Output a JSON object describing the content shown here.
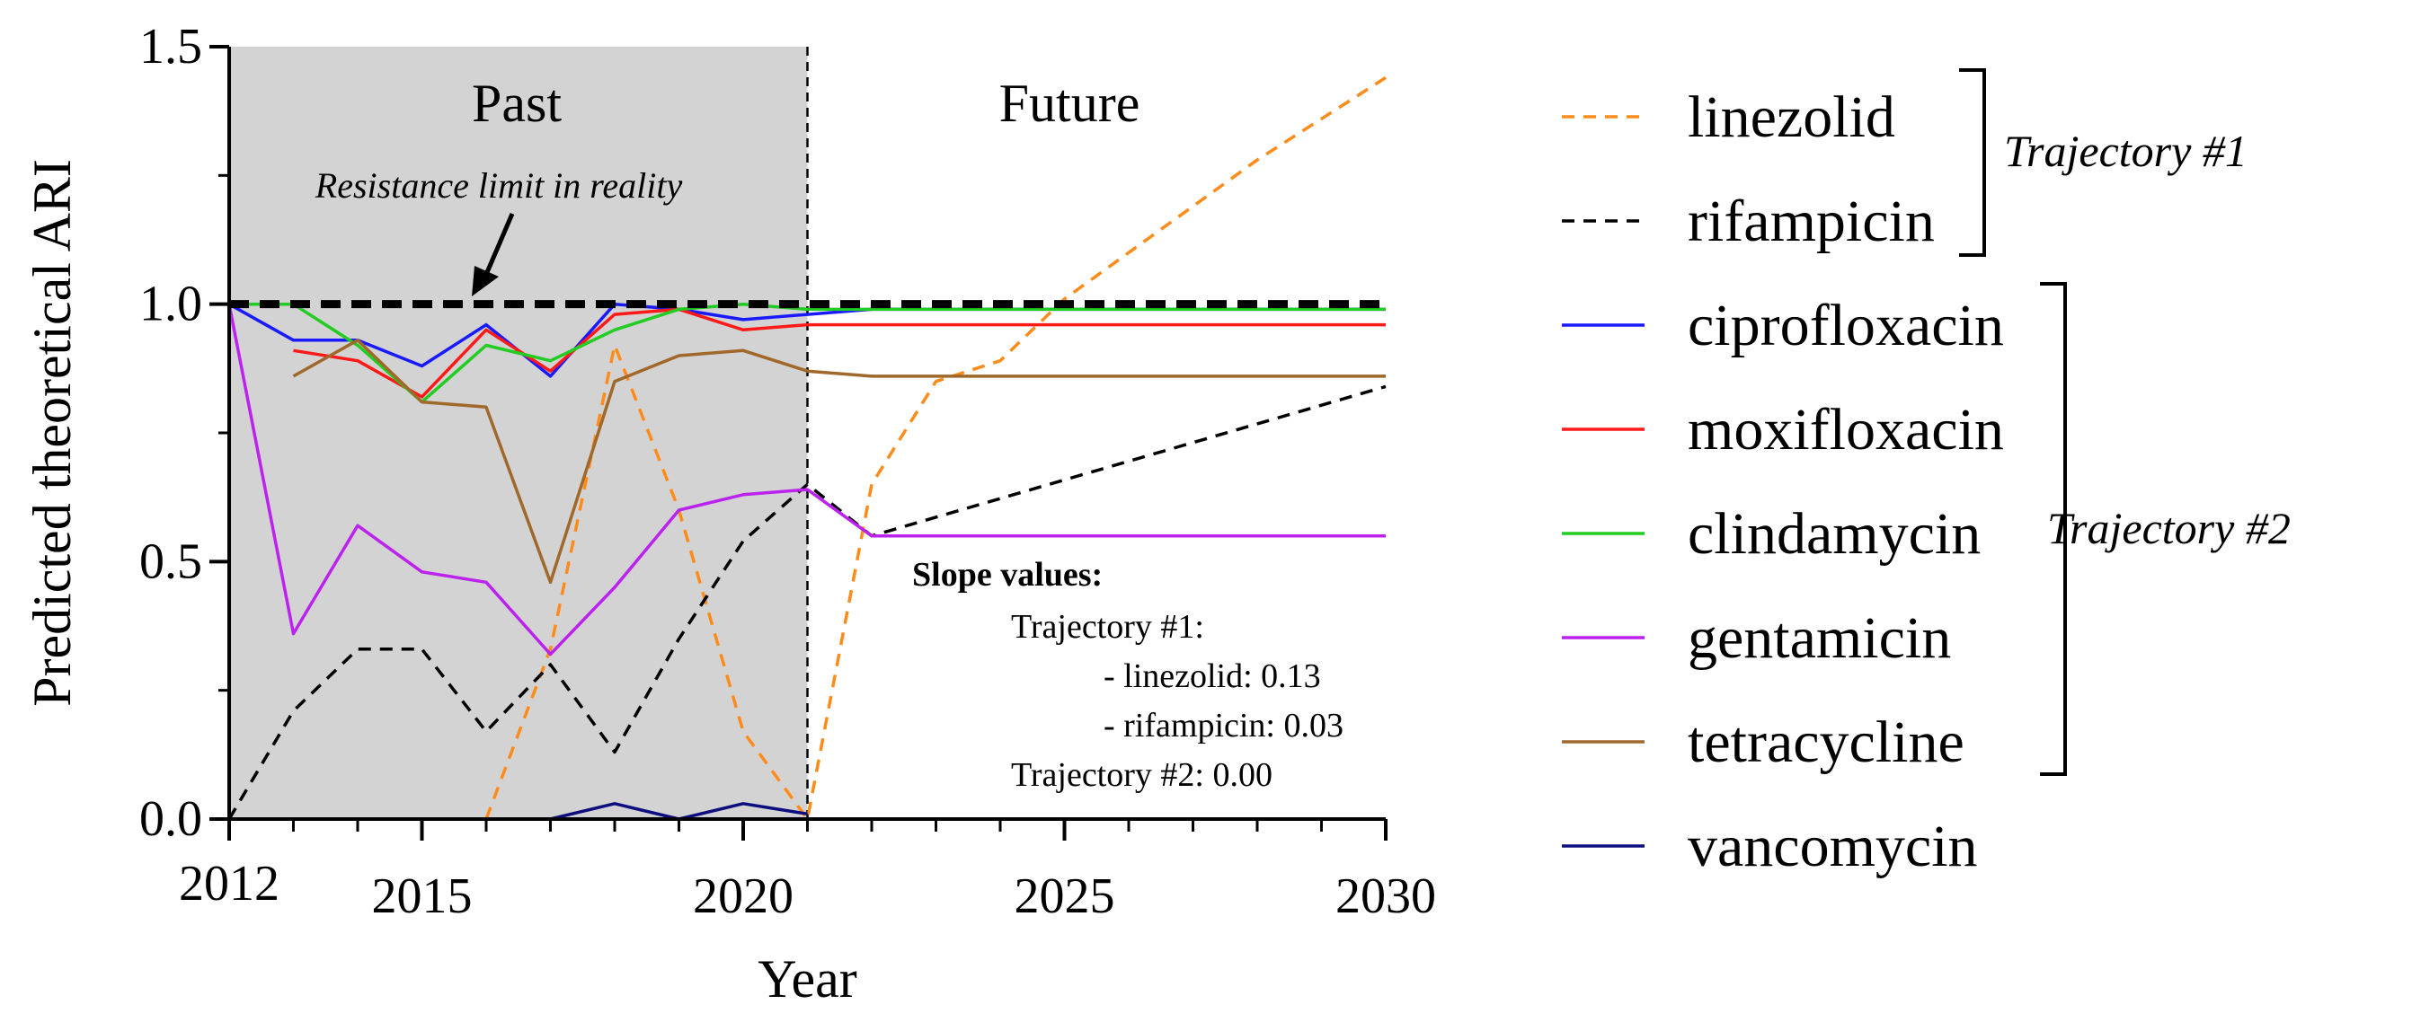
{
  "chart_data": {
    "type": "line",
    "title": "",
    "xlabel": "Year",
    "ylabel": "Predicted theoretical ARI",
    "xlim": [
      2012,
      2030
    ],
    "ylim": [
      0.0,
      1.5
    ],
    "x_tick_labels": [
      "2012",
      "2015",
      "2020",
      "2025",
      "2030"
    ],
    "x_ticks": [
      2012,
      2015,
      2020,
      2025,
      2030
    ],
    "y_tick_labels": [
      "0.0",
      "0.5",
      "1.0",
      "1.5"
    ],
    "y_ticks": [
      0.0,
      0.5,
      1.0,
      1.5
    ],
    "shaded_region": {
      "from": 2012,
      "to": 2021,
      "label": "Past",
      "color": "#d3d3d3"
    },
    "future_label": "Future",
    "divider_x": 2021,
    "resistance_limit": {
      "y": 1.0,
      "label": "Resistance limit in reality",
      "color": "#000000"
    },
    "series": [
      {
        "name": "linezolid",
        "color": "#ff8c1a",
        "dash": "dash",
        "x": [
          2016,
          2017,
          2018,
          2019,
          2020,
          2021,
          2022,
          2023,
          2024,
          2025,
          2026,
          2027,
          2028,
          2029,
          2030
        ],
        "values": [
          0.0,
          0.33,
          0.92,
          0.6,
          0.17,
          0.0,
          0.65,
          0.85,
          0.89,
          1.01,
          1.1,
          1.19,
          1.28,
          1.36,
          1.44
        ]
      },
      {
        "name": "rifampicin",
        "color": "#000000",
        "dash": "dash",
        "x": [
          2012,
          2013,
          2014,
          2015,
          2016,
          2017,
          2018,
          2019,
          2020,
          2021,
          2022,
          2030
        ],
        "values": [
          0.0,
          0.21,
          0.33,
          0.33,
          0.17,
          0.3,
          0.13,
          0.35,
          0.54,
          0.65,
          0.55,
          0.84
        ]
      },
      {
        "name": "ciprofloxacin",
        "color": "#1a1aff",
        "dash": "solid",
        "x": [
          2012,
          2013,
          2014,
          2015,
          2016,
          2017,
          2018,
          2019,
          2020,
          2021,
          2022,
          2030
        ],
        "values": [
          1.0,
          0.93,
          0.93,
          0.88,
          0.96,
          0.86,
          1.0,
          0.99,
          0.97,
          0.98,
          0.99,
          0.99
        ]
      },
      {
        "name": "moxifloxacin",
        "color": "#ff1a1a",
        "dash": "solid",
        "x": [
          2013,
          2014,
          2015,
          2016,
          2017,
          2018,
          2019,
          2020,
          2021,
          2022,
          2030
        ],
        "values": [
          0.91,
          0.89,
          0.82,
          0.95,
          0.87,
          0.98,
          0.99,
          0.95,
          0.96,
          0.96,
          0.96
        ]
      },
      {
        "name": "clindamycin",
        "color": "#22cc22",
        "dash": "solid",
        "x": [
          2012,
          2013,
          2014,
          2015,
          2016,
          2017,
          2018,
          2019,
          2020,
          2021,
          2022,
          2030
        ],
        "values": [
          1.0,
          1.0,
          0.92,
          0.81,
          0.92,
          0.89,
          0.95,
          0.99,
          1.0,
          0.99,
          0.99,
          0.99
        ]
      },
      {
        "name": "gentamicin",
        "color": "#bb22ee",
        "dash": "solid",
        "x": [
          2012,
          2013,
          2014,
          2015,
          2016,
          2017,
          2018,
          2019,
          2020,
          2021,
          2022,
          2030
        ],
        "values": [
          1.0,
          0.36,
          0.57,
          0.48,
          0.46,
          0.32,
          0.45,
          0.6,
          0.63,
          0.64,
          0.55,
          0.55
        ]
      },
      {
        "name": "tetracycline",
        "color": "#a0682a",
        "dash": "solid",
        "x": [
          2013,
          2014,
          2015,
          2016,
          2017,
          2018,
          2019,
          2020,
          2021,
          2022,
          2030
        ],
        "values": [
          0.86,
          0.93,
          0.81,
          0.8,
          0.46,
          0.85,
          0.9,
          0.91,
          0.87,
          0.86,
          0.86
        ]
      },
      {
        "name": "vancomycin",
        "color": "#0d0d80",
        "dash": "solid",
        "x": [
          2017,
          2018,
          2019,
          2020,
          2021
        ],
        "values": [
          0.0,
          0.03,
          0.0,
          0.03,
          0.01
        ]
      }
    ],
    "legend": {
      "placement": "right"
    },
    "trajectory_groups": [
      {
        "label": "Trajectory #1",
        "members": [
          "linezolid",
          "rifampicin"
        ]
      },
      {
        "label": "Trajectory #2",
        "members": [
          "ciprofloxacin",
          "moxifloxacin",
          "clindamycin",
          "gentamicin",
          "tetracycline",
          "vancomycin"
        ]
      }
    ],
    "slope_annotation": {
      "title": "Slope values:",
      "lines": [
        "Trajectory #1:",
        "- linezolid: 0.13",
        "- rifampicin: 0.03",
        "Trajectory #2: 0.00"
      ]
    }
  }
}
